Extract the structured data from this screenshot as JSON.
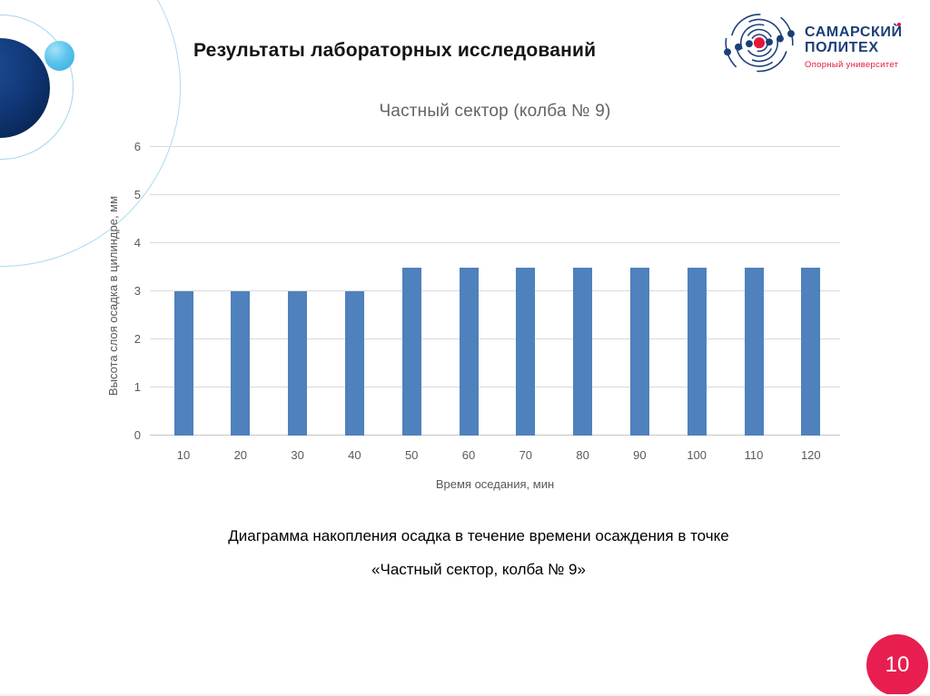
{
  "slide": {
    "title": "Результаты лабораторных исследований",
    "page_number": "10"
  },
  "logo": {
    "name_line1": "САМАРСКИЙ",
    "name_line2": "ПОЛИТЕХ",
    "subtitle": "Опорный университет",
    "brand_blue": "#1b3f77",
    "brand_red": "#e3173c"
  },
  "caption": {
    "line1": "Диаграмма накопления осадка в течение времени осаждения в точке",
    "line2": "«Частный сектор, колба № 9»"
  },
  "chart_data": {
    "type": "bar",
    "title": "Частный сектор (колба № 9)",
    "categories": [
      "10",
      "20",
      "30",
      "40",
      "50",
      "60",
      "70",
      "80",
      "90",
      "100",
      "110",
      "120"
    ],
    "values": [
      3,
      3,
      3,
      3,
      3.5,
      3.5,
      3.5,
      3.5,
      3.5,
      3.5,
      3.5,
      3.5
    ],
    "xlabel": "Время оседания, мин",
    "ylabel": "Высота слоя осадка в цилиндре, мм",
    "ylim": [
      0,
      6
    ],
    "yticks": [
      0,
      1,
      2,
      3,
      4,
      5,
      6
    ],
    "grid": true,
    "legend": "none",
    "bar_color": "#4f81bd",
    "gridline_color": "#d9d9d9",
    "axis_text_color": "#595959"
  }
}
